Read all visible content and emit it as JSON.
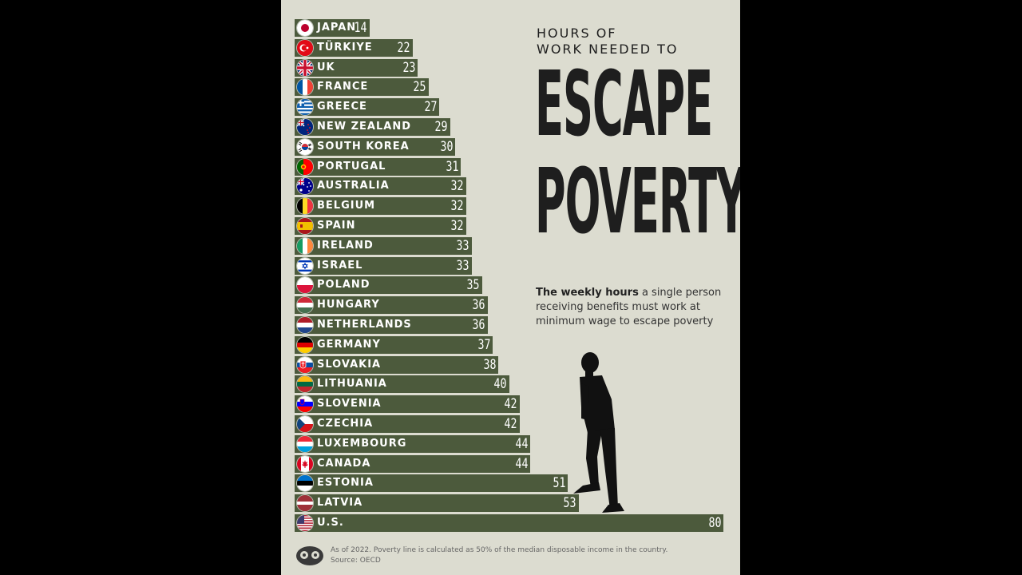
{
  "title": {
    "line1": "HOURS OF",
    "line2": "WORK NEEDED TO",
    "big1": "ESCAPE",
    "big2": "POVERTY"
  },
  "subtitle": {
    "bold": "The weekly hours",
    "rest": " a single person receiving benefits must work at minimum wage to escape poverty"
  },
  "footnote": {
    "line1": "As of 2022. Poverty line is calculated as 50% of the median disposable income in the country.",
    "line2": "Source: OECD"
  },
  "colors": {
    "bar": "#4c5a3c",
    "background": "#dcdcd0",
    "text": "#1e1e1e"
  },
  "chart_data": {
    "type": "bar",
    "orientation": "horizontal",
    "unit": "weekly hours",
    "categories": [
      "JAPAN",
      "TÜRKIYE",
      "UK",
      "FRANCE",
      "GREECE",
      "NEW ZEALAND",
      "SOUTH KOREA",
      "PORTUGAL",
      "AUSTRALIA",
      "BELGIUM",
      "SPAIN",
      "IRELAND",
      "ISRAEL",
      "POLAND",
      "HUNGARY",
      "NETHERLANDS",
      "GERMANY",
      "SLOVAKIA",
      "LITHUANIA",
      "SLOVENIA",
      "CZECHIA",
      "LUXEMBOURG",
      "CANADA",
      "ESTONIA",
      "LATVIA",
      "U.S."
    ],
    "values": [
      14,
      22,
      23,
      25,
      27,
      29,
      30,
      31,
      32,
      32,
      32,
      33,
      33,
      35,
      36,
      36,
      37,
      38,
      40,
      42,
      42,
      44,
      44,
      51,
      53,
      80
    ],
    "flags": [
      "japan",
      "turkiye",
      "uk",
      "france",
      "greece",
      "new-zealand",
      "south-korea",
      "portugal",
      "australia",
      "belgium",
      "spain",
      "ireland",
      "israel",
      "poland",
      "hungary",
      "netherlands",
      "germany",
      "slovakia",
      "lithuania",
      "slovenia",
      "czechia",
      "luxembourg",
      "canada",
      "estonia",
      "latvia",
      "us"
    ],
    "xlim": [
      0,
      80
    ]
  }
}
